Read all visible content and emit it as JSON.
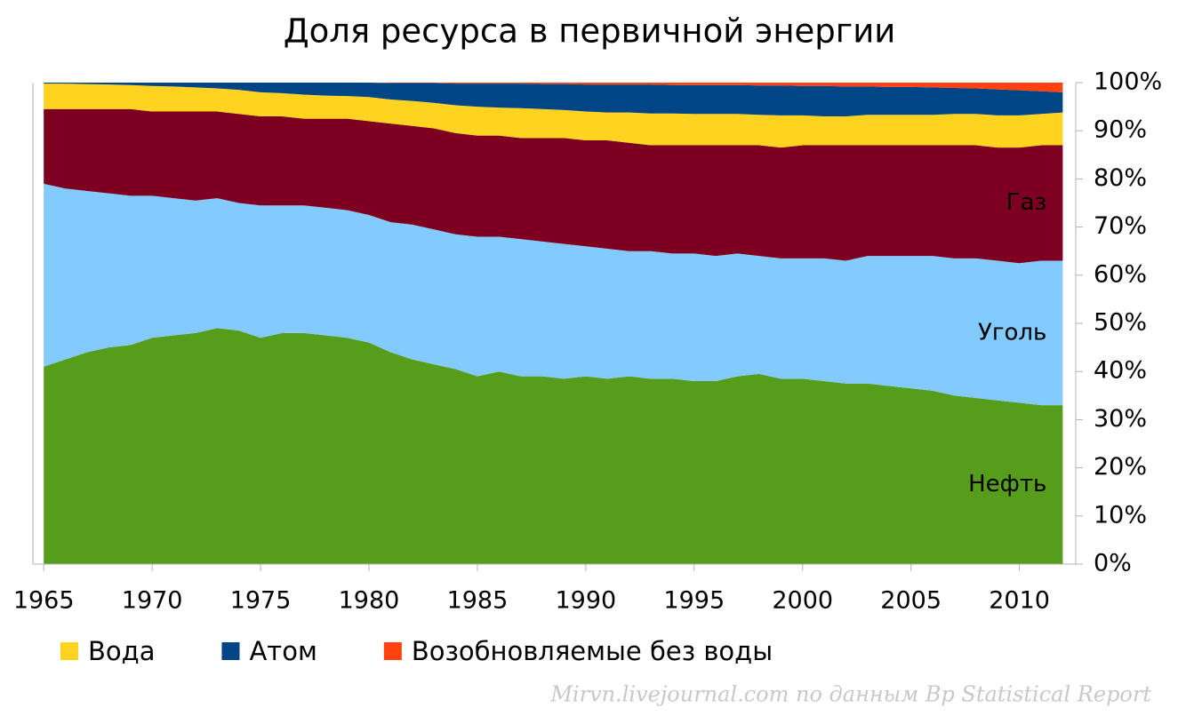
{
  "chart_data": {
    "type": "stacked_area",
    "title": "Доля ресурса в первичной энергии",
    "source": "Mirvn.livejournal.com по данным Bp Statistical Report",
    "x": [
      1965,
      1966,
      1967,
      1968,
      1969,
      1970,
      1971,
      1972,
      1973,
      1974,
      1975,
      1976,
      1977,
      1978,
      1979,
      1980,
      1981,
      1982,
      1983,
      1984,
      1985,
      1986,
      1987,
      1988,
      1989,
      1990,
      1991,
      1992,
      1993,
      1994,
      1995,
      1996,
      1997,
      1998,
      1999,
      2000,
      2001,
      2002,
      2003,
      2004,
      2005,
      2006,
      2007,
      2008,
      2009,
      2010,
      2011,
      2012
    ],
    "xlim": [
      1964.5,
      2012.6
    ],
    "xticks": [
      1965,
      1970,
      1975,
      1980,
      1985,
      1990,
      1995,
      2000,
      2005,
      2010
    ],
    "ylim": [
      0,
      100
    ],
    "yticks": [
      {
        "value": 0,
        "label": "0%"
      },
      {
        "value": 10,
        "label": "10%"
      },
      {
        "value": 20,
        "label": "20%"
      },
      {
        "value": 30,
        "label": "30%"
      },
      {
        "value": 40,
        "label": "40%"
      },
      {
        "value": 50,
        "label": "50%"
      },
      {
        "value": 60,
        "label": "60%"
      },
      {
        "value": 70,
        "label": "70%"
      },
      {
        "value": 80,
        "label": "80%"
      },
      {
        "value": 90,
        "label": "90%"
      },
      {
        "value": 100,
        "label": "100%"
      }
    ],
    "y_axis_side": "right",
    "grid": false,
    "series": [
      {
        "name": "Нефть",
        "color": "#579d1c",
        "in_plot_label": true,
        "values": [
          41,
          42.5,
          44,
          45,
          45.5,
          47,
          47.5,
          48,
          49,
          48.5,
          47,
          48,
          48,
          47.5,
          47,
          46,
          44,
          42.5,
          41.5,
          40.5,
          39,
          40,
          39,
          39,
          38.5,
          39,
          38.5,
          39,
          38.5,
          38.5,
          38,
          38,
          39,
          39.5,
          38.5,
          38.5,
          38,
          37.5,
          37.5,
          37,
          36.5,
          36,
          35,
          34.5,
          34,
          33.5,
          33,
          33
        ]
      },
      {
        "name": "Уголь",
        "color": "#83caff",
        "in_plot_label": true,
        "values": [
          38,
          35.5,
          33.5,
          32,
          31,
          29.5,
          28.5,
          27.5,
          27,
          26.5,
          27.5,
          26.5,
          26.5,
          26.5,
          26.5,
          26.5,
          27,
          28,
          28,
          28,
          29,
          28,
          28.5,
          28,
          28,
          27,
          27,
          26,
          26.5,
          26,
          26.5,
          26,
          25.5,
          24.5,
          25,
          25,
          25.5,
          25.5,
          26.5,
          27,
          27.5,
          28,
          28.5,
          29,
          29,
          29,
          30,
          30
        ]
      },
      {
        "name": "Газ",
        "color": "#7e0021",
        "in_plot_label": true,
        "values": [
          15.5,
          16.5,
          17,
          17.5,
          18,
          17.5,
          18,
          18.5,
          18,
          18.5,
          18.5,
          18.5,
          18,
          18.5,
          19,
          19.5,
          20.5,
          20.5,
          21,
          21,
          21,
          21,
          21,
          21.5,
          22,
          22,
          22.5,
          22.5,
          22,
          22.5,
          22.5,
          23,
          22.5,
          23,
          23,
          23.5,
          23.5,
          24,
          23,
          23,
          23,
          23,
          23.5,
          23.5,
          23.5,
          24,
          24,
          24
        ]
      },
      {
        "name": "Вода",
        "color": "#ffd320",
        "in_plot_label": false,
        "values": [
          5.3,
          5.3,
          5.2,
          5.1,
          5,
          5.3,
          5.2,
          5,
          4.8,
          5,
          5,
          4.8,
          5,
          4.8,
          4.7,
          5,
          5,
          5.2,
          5.3,
          5.8,
          6,
          5.8,
          6.2,
          6,
          5.8,
          6,
          5.8,
          6.3,
          6.6,
          6.6,
          6.5,
          6.5,
          6.5,
          6.3,
          6.7,
          6.2,
          6,
          6,
          6.3,
          6.3,
          6.3,
          6.3,
          6.5,
          6.5,
          6.7,
          6.7,
          6.5,
          6.8
        ]
      },
      {
        "name": "Атом",
        "color": "#004586",
        "in_plot_label": false,
        "values": [
          0.2,
          0.2,
          0.3,
          0.4,
          0.5,
          0.7,
          0.8,
          1,
          1.2,
          1.5,
          2,
          2.2,
          2.5,
          2.7,
          2.8,
          3,
          3.4,
          3.7,
          4.1,
          4.5,
          4.8,
          5,
          5.1,
          5.2,
          5.4,
          5.6,
          5.8,
          5.8,
          6,
          5.9,
          6,
          6,
          6,
          6.1,
          6.2,
          6.1,
          6.3,
          6.2,
          5.9,
          5.8,
          5.8,
          5.7,
          5.4,
          5.3,
          5.4,
          5.2,
          4.7,
          4.2
        ]
      },
      {
        "name": "Возобновляемые без воды",
        "color": "#ff420e",
        "in_plot_label": false,
        "values": [
          0,
          0,
          0,
          0,
          0,
          0,
          0,
          0,
          0,
          0,
          0,
          0,
          0,
          0,
          0,
          0,
          0.1,
          0.1,
          0.1,
          0.2,
          0.2,
          0.2,
          0.2,
          0.3,
          0.3,
          0.4,
          0.4,
          0.4,
          0.4,
          0.5,
          0.5,
          0.5,
          0.5,
          0.6,
          0.6,
          0.7,
          0.7,
          0.8,
          0.8,
          0.9,
          0.9,
          1,
          1.1,
          1.2,
          1.4,
          1.6,
          1.8,
          2
        ]
      }
    ]
  }
}
